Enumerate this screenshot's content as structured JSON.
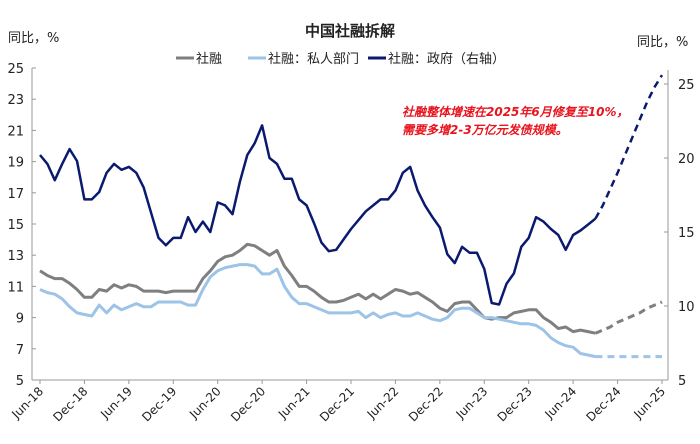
{
  "chart_data": {
    "type": "line",
    "title": "中国社融拆解",
    "ylabel_left": "同比，%",
    "ylabel_right": "同比，%",
    "ylim_left": [
      5,
      25
    ],
    "yticks_left": [
      5,
      7,
      9,
      11,
      13,
      15,
      17,
      19,
      21,
      23,
      25
    ],
    "ylim_right": [
      5,
      26.5
    ],
    "yticks_right": [
      5,
      10,
      15,
      20,
      25
    ],
    "x_start": "Jun-18",
    "x_end": "Jun-25",
    "xticks": [
      "Jun-18",
      "Dec-18",
      "Jun-19",
      "Dec-19",
      "Jun-20",
      "Dec-20",
      "Jun-21",
      "Dec-21",
      "Jun-22",
      "Dec-22",
      "Jun-23",
      "Dec-23",
      "Jun-24",
      "Dec-24",
      "Jun-25"
    ],
    "grid": false,
    "legend_position": "top",
    "annotation": [
      "社融整体增速在2025年6月修复至10%，",
      "需要多增2-3万亿元发债规模。"
    ],
    "annotation_color": "#e8141e",
    "series": [
      {
        "name": "社融",
        "axis": "left",
        "color": "#7f7f7f",
        "values": [
          12.0,
          11.7,
          11.5,
          11.5,
          11.2,
          10.8,
          10.3,
          10.3,
          10.8,
          10.7,
          11.1,
          10.9,
          11.1,
          11.0,
          10.7,
          10.7,
          10.7,
          10.6,
          10.7,
          10.7,
          10.7,
          10.7,
          11.5,
          12.0,
          12.6,
          12.9,
          13.0,
          13.3,
          13.7,
          13.6,
          13.3,
          13.0,
          13.3,
          12.3,
          11.7,
          11.0,
          11.0,
          10.7,
          10.3,
          10.0,
          10.0,
          10.1,
          10.3,
          10.5,
          10.2,
          10.5,
          10.2,
          10.5,
          10.8,
          10.7,
          10.5,
          10.6,
          10.3,
          10.0,
          9.6,
          9.4,
          9.9,
          10.0,
          10.0,
          9.5,
          9.0,
          8.9,
          9.0,
          9.0,
          9.3,
          9.4,
          9.5,
          9.5,
          9.0,
          8.7,
          8.3,
          8.4,
          8.1,
          8.2,
          8.1,
          8.0
        ],
        "projection": [
          8.0,
          8.2,
          8.4,
          8.7,
          8.9,
          9.1,
          9.3,
          9.6,
          9.8,
          10.0
        ]
      },
      {
        "name": "社融：私人部门",
        "axis": "left",
        "color": "#9dc3e6",
        "values": [
          10.8,
          10.6,
          10.5,
          10.2,
          9.7,
          9.3,
          9.2,
          9.1,
          9.8,
          9.3,
          9.8,
          9.5,
          9.7,
          9.9,
          9.7,
          9.7,
          10.0,
          10.0,
          10.0,
          10.0,
          9.8,
          9.8,
          10.8,
          11.6,
          12.0,
          12.2,
          12.3,
          12.4,
          12.4,
          12.3,
          11.8,
          11.8,
          12.1,
          11.0,
          10.3,
          9.9,
          9.9,
          9.7,
          9.5,
          9.3,
          9.3,
          9.3,
          9.3,
          9.4,
          9.0,
          9.3,
          9.0,
          9.2,
          9.3,
          9.1,
          9.1,
          9.3,
          9.1,
          8.9,
          8.8,
          9.0,
          9.5,
          9.6,
          9.6,
          9.3,
          9.0,
          9.0,
          8.9,
          8.8,
          8.7,
          8.6,
          8.6,
          8.5,
          8.2,
          7.7,
          7.4,
          7.2,
          7.1,
          6.7,
          6.6,
          6.5
        ],
        "projection": [
          6.5,
          6.5,
          6.5,
          6.5,
          6.5,
          6.5,
          6.5,
          6.5,
          6.5,
          6.5
        ]
      },
      {
        "name": "社融：政府（右轴）",
        "axis": "right",
        "color": "#0a1a6e",
        "values": [
          20.2,
          19.6,
          18.5,
          19.6,
          20.6,
          19.8,
          17.2,
          17.2,
          17.7,
          19.0,
          19.6,
          19.2,
          19.4,
          19.0,
          18.0,
          16.3,
          14.6,
          14.1,
          14.6,
          14.6,
          16.0,
          15.0,
          15.7,
          15.0,
          17.0,
          16.8,
          16.2,
          18.4,
          20.2,
          21.0,
          22.2,
          20.0,
          19.6,
          18.6,
          18.6,
          17.2,
          16.8,
          15.6,
          14.3,
          13.7,
          13.8,
          14.5,
          15.2,
          15.8,
          16.4,
          16.8,
          17.2,
          17.2,
          17.8,
          19.0,
          19.4,
          17.8,
          16.8,
          16.0,
          15.3,
          13.5,
          12.9,
          14.0,
          13.6,
          13.6,
          12.5,
          10.2,
          10.1,
          11.5,
          12.2,
          14.0,
          14.6,
          16.0,
          15.7,
          15.2,
          14.8,
          13.8,
          14.8,
          15.1,
          15.5,
          15.9
        ],
        "projection": [
          15.9,
          16.8,
          17.9,
          19.0,
          20.2,
          21.4,
          22.6,
          23.8,
          24.8,
          25.6
        ]
      }
    ]
  }
}
